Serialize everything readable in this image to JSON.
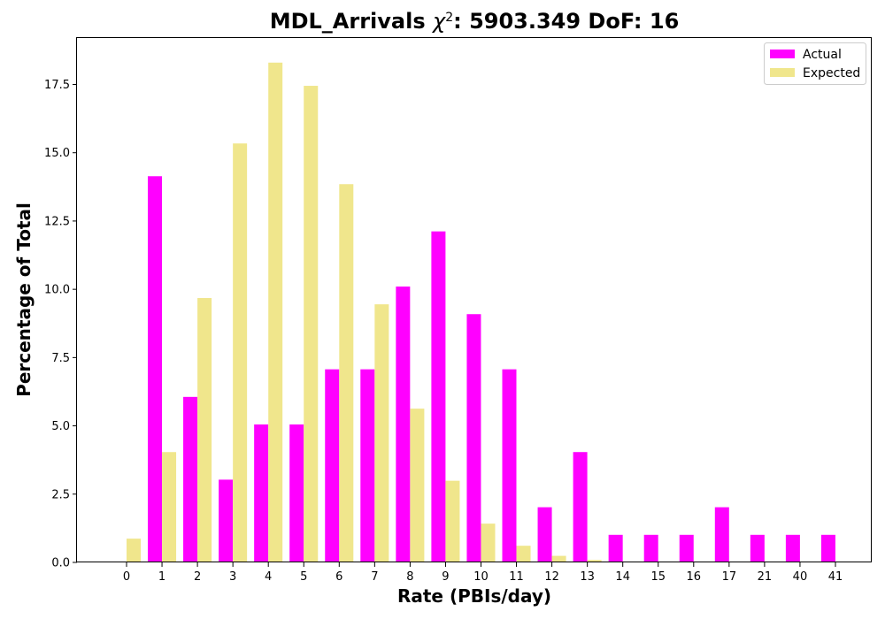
{
  "chart_data": {
    "type": "bar",
    "title": "MDL_Arrivals χ²: 5903.349 DoF: 16",
    "title_parts": {
      "prefix": "MDL_Arrivals ",
      "chi": "χ",
      "sup": "2",
      "suffix": ": 5903.349 DoF: 16"
    },
    "xlabel": "Rate (PBIs/day)",
    "ylabel": "Percentage of Total",
    "ylim": [
      0,
      19.2
    ],
    "yticks": [
      "0.0",
      "2.5",
      "5.0",
      "7.5",
      "10.0",
      "12.5",
      "15.0",
      "17.5"
    ],
    "categories": [
      "0",
      "1",
      "2",
      "3",
      "4",
      "5",
      "6",
      "7",
      "8",
      "9",
      "10",
      "11",
      "12",
      "13",
      "14",
      "15",
      "16",
      "17",
      "21",
      "40",
      "41"
    ],
    "series": [
      {
        "name": "Actual",
        "color": "#ff00ff",
        "values": [
          0,
          14.14,
          6.06,
          3.03,
          5.05,
          5.05,
          7.07,
          7.07,
          10.1,
          12.12,
          9.09,
          7.07,
          2.02,
          4.04,
          1.01,
          1.01,
          1.01,
          2.02,
          1.01,
          1.01,
          1.01
        ]
      },
      {
        "name": "Expected",
        "color": "#f0e68c",
        "values": [
          0.87,
          4.04,
          9.68,
          15.34,
          18.3,
          17.45,
          13.85,
          9.45,
          5.63,
          2.99,
          1.42,
          0.61,
          0.24,
          0.09,
          0.03,
          0.01,
          0,
          0,
          0,
          0,
          0
        ]
      }
    ],
    "legend_position": "top-right",
    "grid": false
  }
}
